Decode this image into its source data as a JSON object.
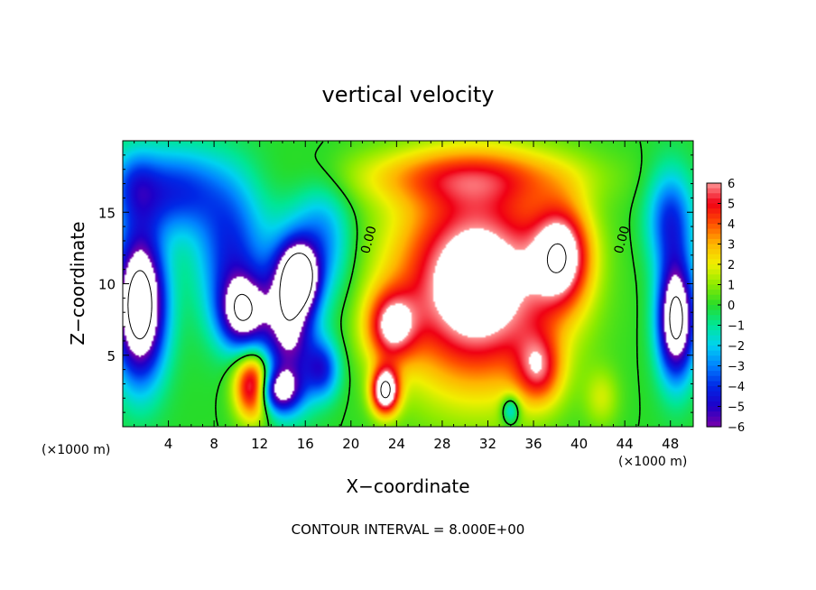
{
  "chart_data": {
    "type": "heatmap",
    "title": "vertical velocity",
    "xlabel": "X−coordinate",
    "ylabel": "Z−coordinate",
    "x_unit_left": "(×1000 m)",
    "x_unit_right": "(×1000 m)",
    "footer": "CONTOUR INTERVAL = 8.000E+00",
    "xlim": [
      0,
      50
    ],
    "ylim": [
      0,
      20
    ],
    "xticks": [
      4,
      8,
      12,
      16,
      20,
      24,
      28,
      32,
      36,
      40,
      44,
      48
    ],
    "yticks": [
      5,
      10,
      15
    ],
    "colorbar": {
      "ticks": [
        "6",
        "5",
        "4",
        "3",
        "2",
        "1",
        "0",
        "−1",
        "−2",
        "−3",
        "−4",
        "−5",
        "−6"
      ],
      "range": [
        -6,
        6
      ],
      "over_color": "#ffffff",
      "under_color": "#ffffff"
    },
    "contour_labels": [
      {
        "text": "0.00",
        "x": 21.9,
        "z": 13
      },
      {
        "text": "0.00",
        "x": 44.1,
        "z": 13
      }
    ],
    "anomalies": [
      {
        "x": 1.5,
        "z": 8.5,
        "w": -10,
        "sx": 2.2,
        "sz": 5.0
      },
      {
        "x": 4.5,
        "z": 16.5,
        "w": -4,
        "sx": 4.5,
        "sz": 3.0
      },
      {
        "x": 9.5,
        "z": 12.0,
        "w": -4,
        "sx": 3.0,
        "sz": 5.0
      },
      {
        "x": 10.5,
        "z": 8.0,
        "w": -6.5,
        "sx": 2.0,
        "sz": 2.5
      },
      {
        "x": 11.5,
        "z": 2.8,
        "w": 7.5,
        "sx": 1.6,
        "sz": 2.2
      },
      {
        "x": 14.5,
        "z": 7.5,
        "w": -7,
        "sx": 2.3,
        "sz": 5.0
      },
      {
        "x": 15.5,
        "z": 10.5,
        "w": -7,
        "sx": 1.6,
        "sz": 2.2
      },
      {
        "x": 13.5,
        "z": 2.5,
        "w": -6,
        "sx": 2.0,
        "sz": 1.5
      },
      {
        "x": 17.5,
        "z": 13.0,
        "w": -3,
        "sx": 2.5,
        "sz": 4.0
      },
      {
        "x": 17.5,
        "z": 4.0,
        "w": -4,
        "sx": 1.5,
        "sz": 2.0
      },
      {
        "x": 31.0,
        "z": 10.0,
        "w": 8,
        "sx": 7.0,
        "sz": 7.0
      },
      {
        "x": 30.0,
        "z": 17.5,
        "w": 3,
        "sx": 10.0,
        "sz": 2.0
      },
      {
        "x": 23.5,
        "z": 7.0,
        "w": 5,
        "sx": 2.2,
        "sz": 2.5
      },
      {
        "x": 23.0,
        "z": 2.5,
        "w": 8,
        "sx": 1.2,
        "sz": 1.6
      },
      {
        "x": 38.5,
        "z": 12.0,
        "w": 6,
        "sx": 2.5,
        "sz": 3.5
      },
      {
        "x": 36.5,
        "z": 4.0,
        "w": 4,
        "sx": 2.0,
        "sz": 2.5
      },
      {
        "x": 42.0,
        "z": 2.0,
        "w": 1.5,
        "sx": 1.5,
        "sz": 2.0
      },
      {
        "x": 48.5,
        "z": 7.5,
        "w": -9,
        "sx": 1.6,
        "sz": 4.0
      },
      {
        "x": 48.0,
        "z": 14.5,
        "w": -4,
        "sx": 2.0,
        "sz": 3.5
      },
      {
        "x": 34.0,
        "z": 1.2,
        "w": -3,
        "sx": 0.8,
        "sz": 1.0
      },
      {
        "x": 1.0,
        "z": 17.0,
        "w": -2,
        "sx": 2.0,
        "sz": 2.5
      }
    ]
  }
}
